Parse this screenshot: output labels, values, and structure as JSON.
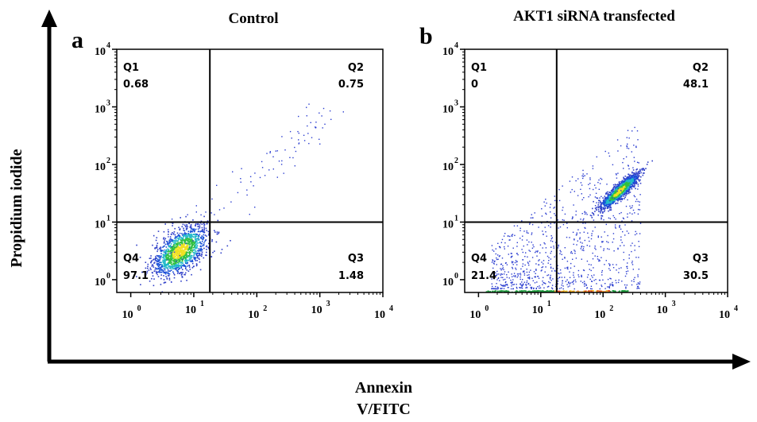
{
  "figure": {
    "y_axis_title": "Propidium iodide",
    "x_axis_title_line1": "Annexin",
    "x_axis_title_line2": "V/FITC"
  },
  "chart_data": [
    {
      "type": "scatter",
      "subtype": "flow-cytometry-density",
      "panel_letter": "a",
      "title": "Control",
      "xscale": "log",
      "yscale": "log",
      "xlim": [
        0.6,
        10000
      ],
      "ylim": [
        0.6,
        10000
      ],
      "x_ticks": [
        "10",
        "10",
        "10",
        "10",
        "10"
      ],
      "x_tick_exponents": [
        "0",
        "1",
        "2",
        "3",
        "4"
      ],
      "y_ticks": [
        "10",
        "10",
        "10",
        "10",
        "10"
      ],
      "y_tick_exponents": [
        "0",
        "1",
        "2",
        "3",
        "4"
      ],
      "gate_x": 18,
      "gate_y": 10,
      "quadrants": [
        {
          "name": "Q1",
          "value": "0.68"
        },
        {
          "name": "Q2",
          "value": "0.75"
        },
        {
          "name": "Q3",
          "value": "1.48"
        },
        {
          "name": "Q4",
          "value": "97.1"
        }
      ],
      "populations": [
        {
          "center_x": 6,
          "center_y": 3.2,
          "spread_log": 0.22,
          "corr": 0.55,
          "count": 1400
        }
      ],
      "background_points": 120
    },
    {
      "type": "scatter",
      "subtype": "flow-cytometry-density",
      "panel_letter": "b",
      "title": "AKT1 siRNA transfected",
      "xscale": "log",
      "yscale": "log",
      "xlim": [
        0.6,
        10000
      ],
      "ylim": [
        0.6,
        10000
      ],
      "x_ticks": [
        "10",
        "10",
        "10",
        "10",
        "10"
      ],
      "x_tick_exponents": [
        "0",
        "1",
        "2",
        "3",
        "4"
      ],
      "y_ticks": [
        "10",
        "10",
        "10",
        "10",
        "10"
      ],
      "y_tick_exponents": [
        "0",
        "1",
        "2",
        "3",
        "4"
      ],
      "gate_x": 18,
      "gate_y": 10,
      "quadrants": [
        {
          "name": "Q1",
          "value": "0"
        },
        {
          "name": "Q2",
          "value": "48.1"
        },
        {
          "name": "Q3",
          "value": "30.5"
        },
        {
          "name": "Q4",
          "value": "21.4"
        }
      ],
      "populations": [
        {
          "center_x": 180,
          "center_y": 35,
          "spread_log": 0.16,
          "corr": 0.9,
          "count": 1300
        }
      ],
      "background_points": 900
    }
  ]
}
